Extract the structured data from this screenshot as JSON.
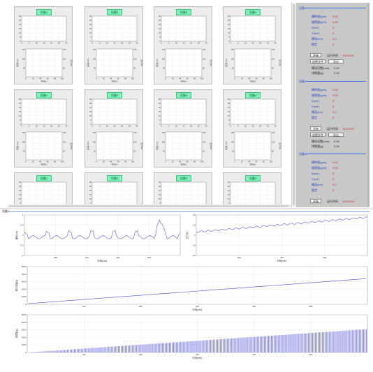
{
  "card_badge": "设备1",
  "card_badges": [
    "设备1",
    "设备2",
    "设备3",
    "设备4",
    "设备1",
    "设备2",
    "设备3",
    "设备4",
    "设备1",
    "设备2",
    "设备3",
    "设备4"
  ],
  "card_chart": {
    "top_yticks": [
      "30",
      "25",
      "20",
      "15",
      "10",
      "5",
      "0"
    ],
    "top_xticks": [
      "0",
      "5",
      "10",
      "15",
      "20",
      "25",
      "30"
    ],
    "bottom_left_yticks": [
      "150",
      "100",
      "50"
    ],
    "bottom_right_yticks": [
      "150",
      "100",
      "50"
    ],
    "bottom_xticks": [
      "0",
      "20",
      "40",
      "60",
      "80",
      "100"
    ],
    "bottom_left_label": "埋深(mm)",
    "bottom_right_label": "压力(N)",
    "bottom_xlabel": "时间(s)"
  },
  "side": {
    "groups": [
      {
        "title": "设备1",
        "rows": [
          {
            "label": "播种量(g/m)",
            "value": "0.00"
          },
          {
            "label": "施肥量(g/m)",
            "value": "0.00"
          },
          {
            "label": "X(cm)",
            "value": "0"
          },
          {
            "label": "Y(cm)",
            "value": "0"
          },
          {
            "label": "播深(cm)",
            "value": "0.0"
          },
          {
            "label": "稳定",
            "value": "0"
          }
        ],
        "btn_start": "开始",
        "status_label": "运行时间",
        "status_value": "00:00:00",
        "btn_a": "选择文件",
        "btn_b": "导出",
        "extra": [
          {
            "label": "播深设置(mm)",
            "value": "0.00"
          },
          {
            "label": "排肥量(g)",
            "value": "0.00"
          }
        ]
      },
      {
        "title": "设备2",
        "rows": [
          {
            "label": "播种量(g/m)",
            "value": "0.00"
          },
          {
            "label": "施肥量(g/m)",
            "value": "0.00"
          },
          {
            "label": "X(cm)",
            "value": "0"
          },
          {
            "label": "Y(cm)",
            "value": "0"
          },
          {
            "label": "播深(cm)",
            "value": "0.0"
          },
          {
            "label": "稳定",
            "value": "0"
          }
        ],
        "btn_start": "开始",
        "status_label": "运行时间",
        "status_value": "00:00:00",
        "btn_a": "选择文件",
        "btn_b": "导出",
        "extra": [
          {
            "label": "播深设置(mm)",
            "value": "0.00"
          },
          {
            "label": "排肥量(g)",
            "value": "0.00"
          }
        ]
      },
      {
        "title": "设备3",
        "rows": [
          {
            "label": "播种量(g/m)",
            "value": "0.00"
          },
          {
            "label": "施肥量(g/m)",
            "value": "0.00"
          },
          {
            "label": "X(cm)",
            "value": "0"
          },
          {
            "label": "Y(cm)",
            "value": "0"
          },
          {
            "label": "播深(cm)",
            "value": "0.0"
          },
          {
            "label": "稳定",
            "value": "0"
          }
        ],
        "btn_start": "开始",
        "status_label": "运行时间",
        "status_value": "00:00:00",
        "btn_a": "",
        "btn_b": "",
        "extra": []
      }
    ]
  },
  "lower": {
    "label": "设备1",
    "chart1": {
      "ylabel": "播深(cm)",
      "xlabel": "时间(min)",
      "yticks": [
        "1",
        "0.5",
        "0",
        "-0.5",
        "-1"
      ],
      "xticks": [
        "250",
        "275",
        "300",
        "325"
      ]
    },
    "chart2": {
      "ylabel": "压力(N)",
      "xlabel": "时间(min)",
      "yticks": [
        "20",
        "10",
        "0",
        "-10",
        "-20"
      ],
      "xticks": [
        "300",
        "400",
        "500"
      ]
    },
    "chart3": {
      "ylabel": "累计排量(g)",
      "xlabel": "时间(min)",
      "yticks": [
        "5000",
        "4000",
        "3000",
        "2000",
        "1000",
        "0"
      ],
      "xticks": [
        "100",
        "200",
        "300",
        "400",
        "500"
      ]
    },
    "chart4": {
      "ylabel": "排肥量(g)",
      "xlabel": "时间(min)",
      "yticks": [
        "5000",
        "4000",
        "3000",
        "2000",
        "1000",
        "0"
      ],
      "xticks": [
        "100",
        "200",
        "300",
        "400",
        "500"
      ]
    }
  },
  "colors": {
    "accent": "#3a6ee8",
    "badge": "#7ef0b8",
    "value_red": "#d02020",
    "label_blue": "#1f44c4",
    "series": "#5b5bd6"
  }
}
